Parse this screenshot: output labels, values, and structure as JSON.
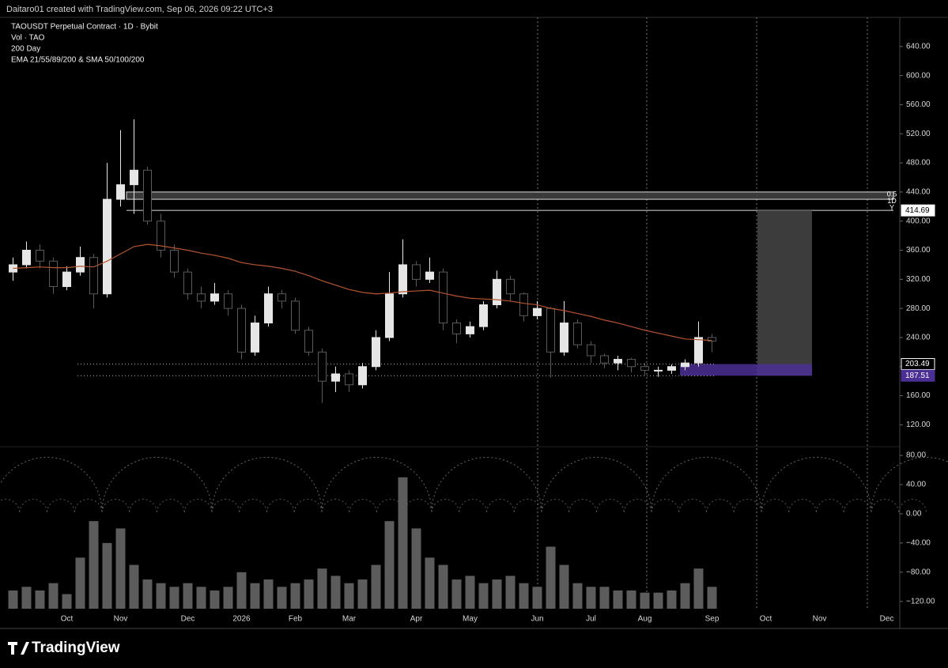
{
  "header": "Daitaro01 created with TradingView.com, Sep 06, 2026 09:22 UTC+3",
  "legend": [
    "TAOUSDT Perpetual Contract · 1D · Bybit",
    "Vol · TAO",
    "200 Day",
    "EMA 21/55/89/200 & SMA 50/100/200"
  ],
  "brand": "TradingView",
  "chart_data": {
    "type": "candlestick",
    "categories": [
      null,
      null,
      null,
      null,
      "Oct",
      null,
      null,
      null,
      "Nov",
      null,
      null,
      null,
      null,
      "Dec",
      null,
      null,
      null,
      "2026",
      null,
      null,
      null,
      "Feb",
      null,
      null,
      null,
      "Mar",
      null,
      null,
      null,
      null,
      "Apr",
      null,
      null,
      null,
      "May",
      null,
      null,
      null,
      null,
      "Jun",
      null,
      null,
      null,
      "Jul",
      null,
      null,
      null,
      "Aug",
      null,
      null,
      null,
      null,
      "Sep",
      null,
      null,
      null,
      "Oct",
      null,
      null,
      null,
      "Nov",
      null,
      null,
      null,
      null,
      "Dec",
      null,
      null,
      null
    ],
    "open": [
      330,
      340,
      360,
      345,
      310,
      330,
      350,
      300,
      430,
      450,
      470,
      400,
      360,
      330,
      300,
      290,
      300,
      280,
      220,
      260,
      300,
      290,
      250,
      220,
      180,
      190,
      175,
      200,
      240,
      300,
      340,
      320,
      330,
      260,
      245,
      255,
      285,
      320,
      300,
      270,
      280,
      220,
      260,
      230,
      215,
      205,
      210,
      200,
      195,
      195,
      200,
      205,
      240,
      null,
      null,
      null,
      null,
      null,
      null,
      null,
      null,
      null,
      null,
      null,
      null,
      null,
      null,
      null,
      null
    ],
    "high": [
      350,
      372,
      368,
      350,
      338,
      365,
      355,
      480,
      525,
      540,
      475,
      410,
      368,
      335,
      310,
      315,
      305,
      285,
      270,
      310,
      305,
      295,
      255,
      225,
      200,
      195,
      205,
      250,
      330,
      375,
      345,
      350,
      335,
      265,
      262,
      290,
      332,
      325,
      302,
      290,
      282,
      290,
      265,
      235,
      218,
      215,
      212,
      205,
      200,
      203,
      210,
      262,
      245,
      null,
      null,
      null,
      null,
      null,
      null,
      null,
      null,
      null,
      null,
      null,
      null,
      null,
      null,
      null,
      null
    ],
    "low": [
      318,
      335,
      335,
      300,
      305,
      325,
      280,
      295,
      420,
      410,
      395,
      350,
      322,
      292,
      280,
      285,
      270,
      210,
      215,
      255,
      280,
      245,
      215,
      150,
      165,
      165,
      170,
      195,
      235,
      295,
      310,
      315,
      250,
      232,
      240,
      250,
      280,
      290,
      262,
      265,
      185,
      215,
      225,
      205,
      198,
      195,
      192,
      188,
      186,
      190,
      195,
      200,
      220,
      null,
      null,
      null,
      null,
      null,
      null,
      null,
      null,
      null,
      null,
      null,
      null,
      null,
      null,
      null,
      null
    ],
    "close": [
      340,
      360,
      345,
      310,
      330,
      350,
      300,
      430,
      450,
      470,
      400,
      360,
      330,
      300,
      290,
      300,
      280,
      220,
      260,
      300,
      290,
      250,
      220,
      180,
      190,
      175,
      200,
      240,
      300,
      340,
      320,
      330,
      260,
      245,
      255,
      285,
      320,
      300,
      270,
      280,
      220,
      260,
      230,
      215,
      205,
      210,
      200,
      195,
      195,
      200,
      205,
      240,
      235,
      null,
      null,
      null,
      null,
      null,
      null,
      null,
      null,
      null,
      null,
      null,
      null,
      null,
      null,
      null,
      null
    ],
    "up_color": "#e6e6e6",
    "down_color": "#5a5a5a",
    "ma": {
      "color": "#b5542f",
      "values": [
        335,
        336,
        337,
        336,
        336,
        338,
        337,
        345,
        355,
        365,
        368,
        366,
        363,
        360,
        356,
        353,
        349,
        343,
        340,
        338,
        335,
        331,
        325,
        318,
        312,
        306,
        302,
        300,
        301,
        303,
        304,
        305,
        301,
        297,
        294,
        293,
        292,
        290,
        287,
        285,
        280,
        277,
        273,
        269,
        264,
        260,
        255,
        250,
        246,
        242,
        238,
        237,
        236,
        null,
        null,
        null,
        null,
        null,
        null,
        null,
        null,
        null,
        null,
        null,
        null,
        null,
        null,
        null,
        null
      ]
    },
    "ylim": [
      90,
      680
    ],
    "yticks": [
      {
        "value": 640,
        "label": "640.00"
      },
      {
        "value": 600,
        "label": "600.00"
      },
      {
        "value": 560,
        "label": "560.00"
      },
      {
        "value": 520,
        "label": "520.00"
      },
      {
        "value": 480,
        "label": "480.00"
      },
      {
        "value": 440,
        "label": "440.00"
      },
      {
        "value": 400,
        "label": "400.00"
      },
      {
        "value": 360,
        "label": "360.00"
      },
      {
        "value": 320,
        "label": "320.00"
      },
      {
        "value": 280,
        "label": "280.00"
      },
      {
        "value": 240,
        "label": "240.00"
      },
      {
        "value": 200,
        "label": "200.00"
      },
      {
        "value": 160,
        "label": "160.00"
      },
      {
        "value": 120,
        "label": "120.00"
      }
    ],
    "zone": [
      430,
      440
    ],
    "price_labels": [
      414.69,
      203.49,
      187.51
    ],
    "level_labels": [
      "0.5",
      "1D",
      "Y"
    ],
    "volume": {
      "color": "#5c5c5c",
      "values": [
        -105,
        -100,
        -105,
        -95,
        -110,
        -60,
        -10,
        -40,
        -20,
        -70,
        -90,
        -95,
        -100,
        -95,
        -100,
        -105,
        -100,
        -80,
        -95,
        -90,
        -100,
        -95,
        -90,
        -75,
        -85,
        -95,
        -90,
        -70,
        -10,
        50,
        -20,
        -60,
        -70,
        -90,
        -85,
        -95,
        -90,
        -85,
        -95,
        -100,
        -45,
        -70,
        -95,
        -100,
        -100,
        -105,
        -105,
        -108,
        -108,
        -105,
        -95,
        -75,
        -100,
        null,
        null,
        null,
        null,
        null,
        null,
        null,
        null,
        null,
        null,
        null,
        null,
        null,
        null,
        null,
        null
      ],
      "ylim": [
        -130,
        92
      ],
      "yticks": [
        {
          "value": 80,
          "label": "80.00"
        },
        {
          "value": 40,
          "label": "40.00"
        },
        {
          "value": 0,
          "label": "0.00"
        },
        {
          "value": -40,
          "label": "−40.00"
        },
        {
          "value": -80,
          "label": "−80.00"
        },
        {
          "value": -120,
          "label": "−120.00"
        }
      ]
    }
  }
}
